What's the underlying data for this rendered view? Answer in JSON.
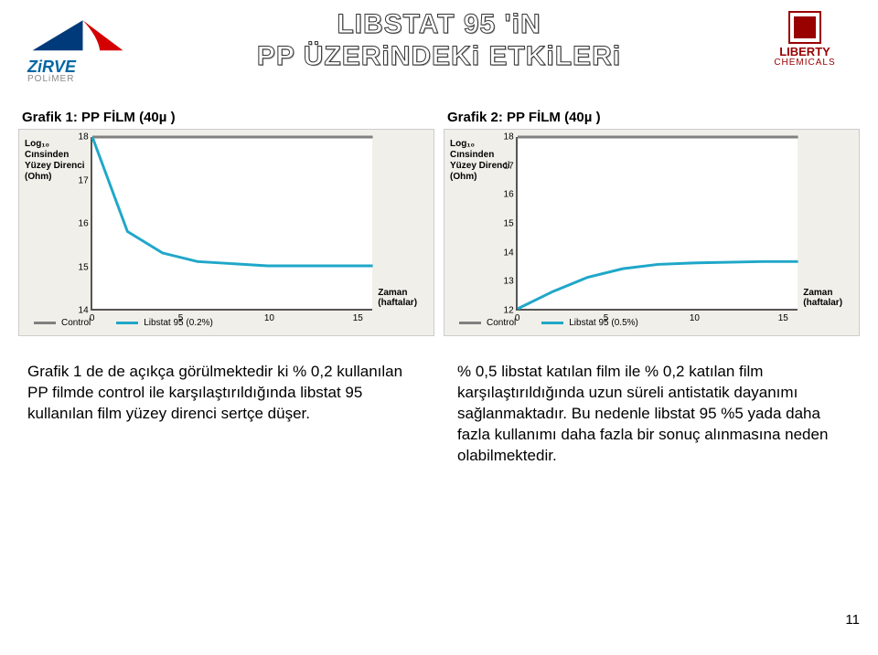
{
  "title_line1": "LIBSTAT 95 'iN",
  "title_line2": "PP ÜZERiNDEKi ETKiLERi",
  "logo_left": {
    "name": "ZiRVE",
    "sub": "POLiMER",
    "triangle_color": "#003a7a",
    "accent_color": "#d40000"
  },
  "logo_right": {
    "name": "LIBERTY",
    "sub": "CHEMICALS",
    "color": "#990000"
  },
  "page_number": "11",
  "charts": [
    {
      "title": "Grafik 1: PP FİLM (40µ )",
      "ylabel": "Log₁₀\nCınsinden\nYüzey Direnci\n(Ohm)",
      "xlabel": "Zaman\n(haftalar)",
      "ylim": [
        14,
        18
      ],
      "ytick_step": 1,
      "xlim": [
        0,
        16
      ],
      "xticks": [
        0,
        5,
        10,
        15
      ],
      "background_color": "#f1efe9",
      "series": [
        {
          "name": "Control",
          "color": "#808080",
          "points": [
            [
              0,
              18
            ],
            [
              2,
              18
            ],
            [
              6,
              18
            ],
            [
              10,
              18
            ],
            [
              16,
              18
            ]
          ]
        },
        {
          "name": "Libstat 95 (0.2%)",
          "color": "#1fa7c9",
          "points": [
            [
              0,
              18
            ],
            [
              2,
              15.8
            ],
            [
              4,
              15.3
            ],
            [
              6,
              15.1
            ],
            [
              10,
              15.0
            ],
            [
              16,
              15.0
            ]
          ]
        }
      ]
    },
    {
      "title": "Grafik 2: PP FİLM (40µ )",
      "ylabel": "Log₁₀\nCınsinden\nYüzey Direnci\n(Ohm)",
      "xlabel": "Zaman\n(haftalar)",
      "ylim": [
        12,
        18
      ],
      "ytick_step": 1,
      "xlim": [
        0,
        16
      ],
      "xticks": [
        0,
        5,
        10,
        15
      ],
      "background_color": "#f1efe9",
      "series": [
        {
          "name": "Control",
          "color": "#808080",
          "points": [
            [
              0,
              18
            ],
            [
              16,
              18
            ]
          ]
        },
        {
          "name": "Libstat 95 (0.5%)",
          "color": "#1fa7c9",
          "points": [
            [
              0,
              12
            ],
            [
              2,
              12.6
            ],
            [
              4,
              13.1
            ],
            [
              6,
              13.4
            ],
            [
              8,
              13.55
            ],
            [
              10,
              13.6
            ],
            [
              14,
              13.65
            ],
            [
              16,
              13.65
            ]
          ]
        }
      ]
    }
  ],
  "paragraph_left": "Grafik 1 de de açıkça görülmektedir ki % 0,2 kullanılan PP filmde control ile karşılaştırıldığında libstat 95 kullanılan film yüzey direnci sertçe düşer.",
  "paragraph_right": "% 0,5 libstat katılan film ile % 0,2 katılan film karşılaştırıldığında uzun süreli antistatik dayanımı sağlanmaktadır. Bu nedenle libstat 95 %5 yada daha fazla kullanımı daha fazla bir sonuç alınmasına neden olabilmektedir."
}
